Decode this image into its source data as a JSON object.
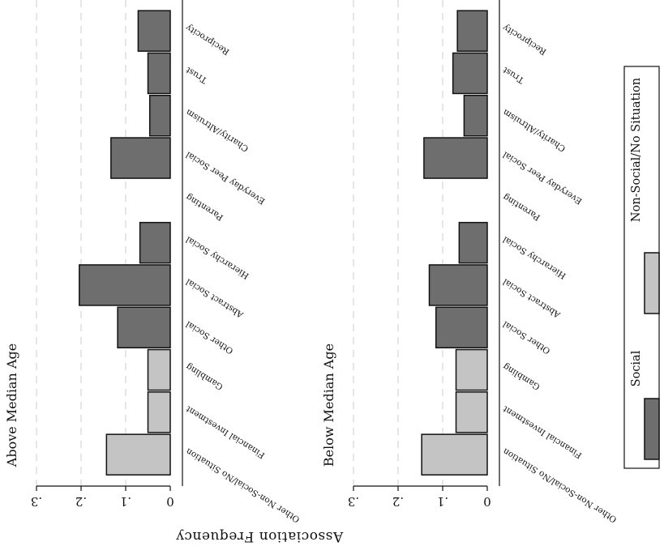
{
  "chart_data": {
    "type": "bar",
    "orientation": "rotated",
    "ylabel": "Association Frequency",
    "yticks": [
      ".3",
      ".2",
      ".1",
      "0"
    ],
    "ylim": [
      0,
      0.3
    ],
    "grid": true,
    "legend": {
      "placement": "right",
      "entries": [
        {
          "label": "Social",
          "color": "#6e6e6e"
        },
        {
          "label": "Non-Social/No Situation",
          "color": "#c4c4c4"
        }
      ]
    },
    "categories": [
      {
        "name": "Reciprocity",
        "group": "Social"
      },
      {
        "name": "Trust",
        "group": "Social"
      },
      {
        "name": "Charity/Altruism",
        "group": "Social"
      },
      {
        "name": "Everyday Peer Social",
        "group": "Social"
      },
      {
        "name": "Parenting",
        "group": "Social"
      },
      {
        "name": "Hierarchy Social",
        "group": "Social"
      },
      {
        "name": "Abstract Social",
        "group": "Social"
      },
      {
        "name": "Other Social",
        "group": "Social"
      },
      {
        "name": "Gambling",
        "group": "Non-Social/No Situation"
      },
      {
        "name": "Financial Investment",
        "group": "Non-Social/No Situation"
      },
      {
        "name": "Other Non-Social/No Situation",
        "group": "Non-Social/No Situation"
      }
    ],
    "panels": [
      {
        "title": "Above Median Age",
        "values": [
          0.072,
          0.05,
          0.046,
          0.133,
          0.0,
          0.068,
          0.204,
          0.118,
          0.05,
          0.05,
          0.143
        ]
      },
      {
        "title": "Below Median Age",
        "values": [
          0.067,
          0.077,
          0.052,
          0.142,
          0.0,
          0.063,
          0.13,
          0.115,
          0.07,
          0.07,
          0.147
        ]
      }
    ]
  }
}
